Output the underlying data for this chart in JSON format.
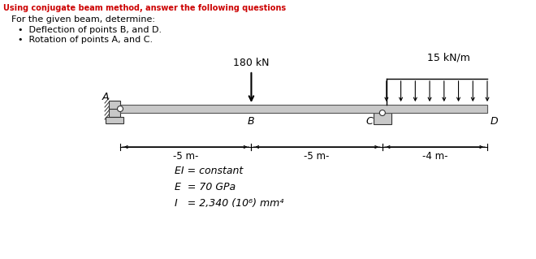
{
  "title_red": "Using conjugate beam method, answer the following questions",
  "body_text": "For the given beam, determine:",
  "bullet1": "Deflection of points B, and D.",
  "bullet2": "Rotation of points A, and C.",
  "load_label": "180 kN",
  "dist_load_label": "15 kN/m",
  "dim1": "-5 m-",
  "dim2": "-5 m-",
  "dim3": "-4 m-",
  "eq1": "EI = constant",
  "eq2": "E  = 70 GPa",
  "eq3": "I   = 2,340 (10⁶) mm⁴",
  "bg_color": "#ffffff",
  "red_color": "#cc0000",
  "text_color": "#000000",
  "beam_color_face": "#c8c8c8",
  "beam_color_edge": "#555555",
  "support_face": "#c8c8c8",
  "support_edge": "#333333"
}
